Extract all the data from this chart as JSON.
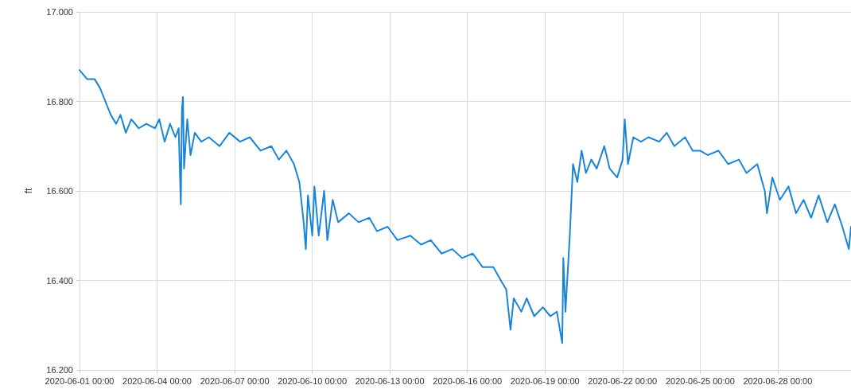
{
  "chart_data": {
    "type": "line",
    "ylabel": "ft",
    "color": "#1a85d6",
    "marker": "none",
    "line_style": "solid",
    "grid": true,
    "xlim": [
      "2020-06-01T00:00",
      "2020-06-30T20:00"
    ],
    "xticks": [
      {
        "value": "2020-06-01T00:00",
        "label": "2020-06-01 00:00"
      },
      {
        "value": "2020-06-04T00:00",
        "label": "2020-06-04 00:00"
      },
      {
        "value": "2020-06-07T00:00",
        "label": "2020-06-07 00:00"
      },
      {
        "value": "2020-06-10T00:00",
        "label": "2020-06-10 00:00"
      },
      {
        "value": "2020-06-13T00:00",
        "label": "2020-06-13 00:00"
      },
      {
        "value": "2020-06-16T00:00",
        "label": "2020-06-16 00:00"
      },
      {
        "value": "2020-06-19T00:00",
        "label": "2020-06-19 00:00"
      },
      {
        "value": "2020-06-22T00:00",
        "label": "2020-06-22 00:00"
      },
      {
        "value": "2020-06-25T00:00",
        "label": "2020-06-25 00:00"
      },
      {
        "value": "2020-06-28T00:00",
        "label": "2020-06-28 00:00"
      }
    ],
    "ylim": [
      16.2,
      17.0
    ],
    "yticks": [
      {
        "value": 16.2,
        "label": "16.200"
      },
      {
        "value": 16.4,
        "label": "16.400"
      },
      {
        "value": 16.6,
        "label": "16.600"
      },
      {
        "value": 16.8,
        "label": "16.800"
      },
      {
        "value": 17.0,
        "label": "17.000"
      }
    ],
    "x": [
      "2020-06-01T00:00",
      "2020-06-01T07:00",
      "2020-06-01T14:00",
      "2020-06-01T19:00",
      "2020-06-02T00:00",
      "2020-06-02T05:00",
      "2020-06-02T10:00",
      "2020-06-02T14:00",
      "2020-06-02T19:00",
      "2020-06-03T00:00",
      "2020-06-03T07:00",
      "2020-06-03T14:00",
      "2020-06-03T22:00",
      "2020-06-04T02:00",
      "2020-06-04T07:00",
      "2020-06-04T12:00",
      "2020-06-04T17:00",
      "2020-06-04T20:00",
      "2020-06-04T22:00",
      "2020-06-04T23:00",
      "2020-06-05T00:00",
      "2020-06-05T01:00",
      "2020-06-05T04:00",
      "2020-06-05T07:00",
      "2020-06-05T11:00",
      "2020-06-05T17:00",
      "2020-06-06T00:00",
      "2020-06-06T10:00",
      "2020-06-06T19:00",
      "2020-06-07T05:00",
      "2020-06-07T14:00",
      "2020-06-08T00:00",
      "2020-06-08T10:00",
      "2020-06-08T17:00",
      "2020-06-09T00:00",
      "2020-06-09T07:00",
      "2020-06-09T12:00",
      "2020-06-09T16:00",
      "2020-06-09T18:00",
      "2020-06-09T20:00",
      "2020-06-10T00:00",
      "2020-06-10T02:00",
      "2020-06-10T06:00",
      "2020-06-10T11:00",
      "2020-06-10T14:00",
      "2020-06-10T19:00",
      "2020-06-11T00:00",
      "2020-06-11T10:00",
      "2020-06-11T19:00",
      "2020-06-12T05:00",
      "2020-06-12T12:00",
      "2020-06-12T22:00",
      "2020-06-13T07:00",
      "2020-06-13T19:00",
      "2020-06-14T05:00",
      "2020-06-14T14:00",
      "2020-06-15T00:00",
      "2020-06-15T10:00",
      "2020-06-15T19:00",
      "2020-06-16T05:00",
      "2020-06-16T14:00",
      "2020-06-17T00:00",
      "2020-06-17T07:00",
      "2020-06-17T12:00",
      "2020-06-17T16:00",
      "2020-06-17T19:00",
      "2020-06-18T02:00",
      "2020-06-18T07:00",
      "2020-06-18T14:00",
      "2020-06-18T22:00",
      "2020-06-19T05:00",
      "2020-06-19T11:00",
      "2020-06-19T16:00",
      "2020-06-19T17:00",
      "2020-06-19T19:00",
      "2020-06-19T23:00",
      "2020-06-20T02:00",
      "2020-06-20T06:00",
      "2020-06-20T10:00",
      "2020-06-20T14:00",
      "2020-06-20T19:00",
      "2020-06-21T00:00",
      "2020-06-21T07:00",
      "2020-06-21T12:00",
      "2020-06-21T19:00",
      "2020-06-22T00:00",
      "2020-06-22T02:00",
      "2020-06-22T05:00",
      "2020-06-22T10:00",
      "2020-06-22T17:00",
      "2020-06-23T00:00",
      "2020-06-23T10:00",
      "2020-06-23T17:00",
      "2020-06-24T00:00",
      "2020-06-24T10:00",
      "2020-06-24T17:00",
      "2020-06-25T00:00",
      "2020-06-25T07:00",
      "2020-06-25T17:00",
      "2020-06-26T02:00",
      "2020-06-26T12:00",
      "2020-06-26T19:00",
      "2020-06-27T05:00",
      "2020-06-27T12:00",
      "2020-06-27T14:00",
      "2020-06-27T19:00",
      "2020-06-28T02:00",
      "2020-06-28T10:00",
      "2020-06-28T17:00",
      "2020-06-29T00:00",
      "2020-06-29T07:00",
      "2020-06-29T14:00",
      "2020-06-29T22:00",
      "2020-06-30T05:00",
      "2020-06-30T12:00",
      "2020-06-30T18:00",
      "2020-06-30T20:00"
    ],
    "values": [
      16.87,
      16.85,
      16.85,
      16.83,
      16.8,
      16.77,
      16.75,
      16.77,
      16.73,
      16.76,
      16.74,
      16.75,
      16.74,
      16.76,
      16.71,
      16.75,
      16.72,
      16.74,
      16.57,
      16.78,
      16.81,
      16.65,
      16.76,
      16.68,
      16.73,
      16.71,
      16.72,
      16.7,
      16.73,
      16.71,
      16.72,
      16.69,
      16.7,
      16.67,
      16.69,
      16.66,
      16.62,
      16.53,
      16.47,
      16.59,
      16.5,
      16.61,
      16.5,
      16.6,
      16.49,
      16.58,
      16.53,
      16.55,
      16.53,
      16.54,
      16.51,
      16.52,
      16.49,
      16.5,
      16.48,
      16.49,
      16.46,
      16.47,
      16.45,
      16.46,
      16.43,
      16.43,
      16.4,
      16.38,
      16.29,
      16.36,
      16.33,
      16.36,
      16.32,
      16.34,
      16.32,
      16.33,
      16.26,
      16.45,
      16.33,
      16.5,
      16.66,
      16.62,
      16.69,
      16.64,
      16.67,
      16.65,
      16.7,
      16.65,
      16.63,
      16.67,
      16.76,
      16.66,
      16.72,
      16.71,
      16.72,
      16.71,
      16.73,
      16.7,
      16.72,
      16.69,
      16.69,
      16.68,
      16.69,
      16.66,
      16.67,
      16.64,
      16.66,
      16.6,
      16.55,
      16.63,
      16.58,
      16.61,
      16.55,
      16.58,
      16.54,
      16.59,
      16.53,
      16.57,
      16.52,
      16.47,
      16.52
    ]
  }
}
